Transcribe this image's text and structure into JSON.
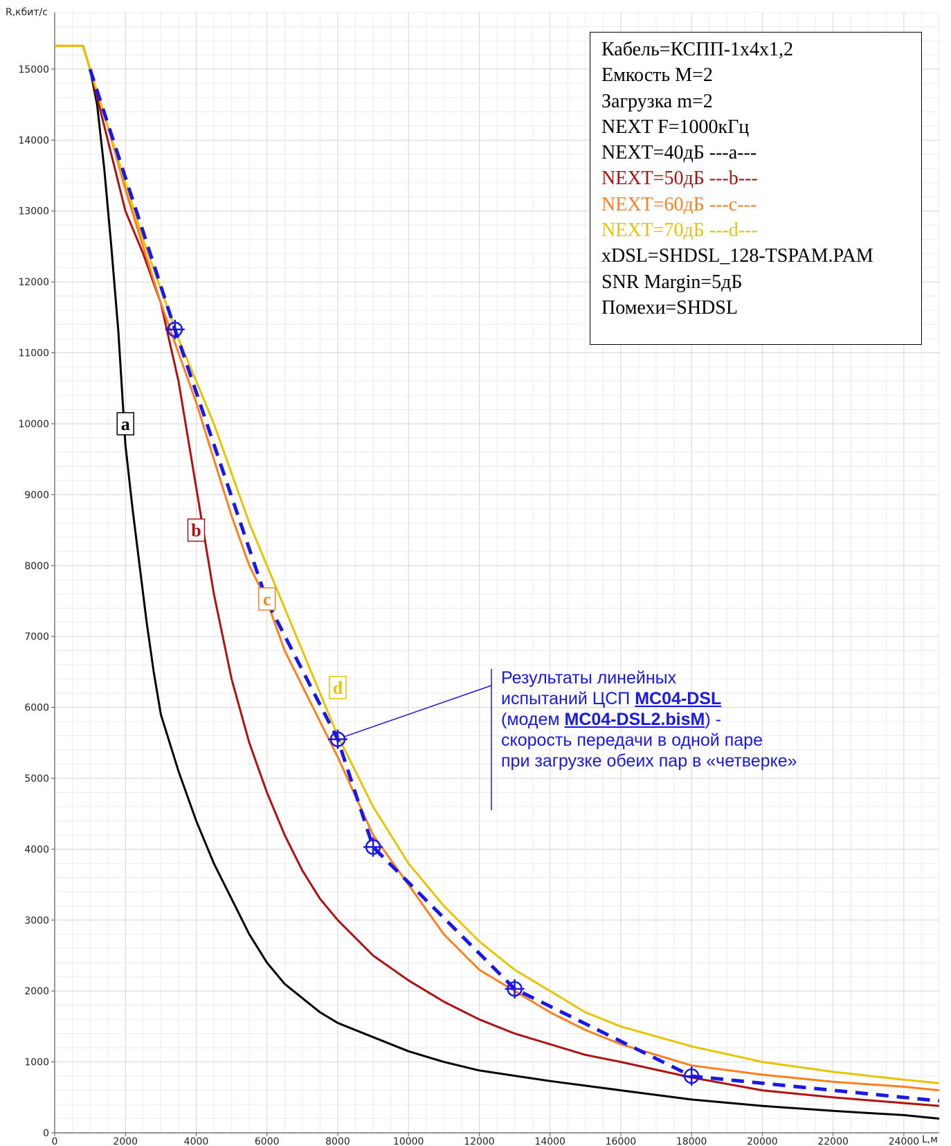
{
  "chart_data": {
    "type": "line",
    "xlabel": "L,м",
    "ylabel": "R,кбит/с",
    "xlim": [
      0,
      25000
    ],
    "ylim": [
      0,
      15800
    ],
    "x_ticks": [
      "0",
      "2000",
      "4000",
      "6000",
      "8000",
      "10000",
      "12000",
      "14000",
      "16000",
      "18000",
      "20000",
      "22000",
      "24000"
    ],
    "y_ticks": [
      "0",
      "1000",
      "2000",
      "3000",
      "4000",
      "5000",
      "6000",
      "7000",
      "8000",
      "9000",
      "10000",
      "11000",
      "12000",
      "13000",
      "14000",
      "15000"
    ],
    "grid": true,
    "series": [
      {
        "label": "a",
        "color": "#000000",
        "x": [
          0,
          800,
          1000,
          1200,
          1400,
          1600,
          1800,
          2000,
          2200,
          2400,
          2600,
          2800,
          3000,
          3500,
          4000,
          4500,
          5000,
          5500,
          6000,
          6500,
          7000,
          7500,
          8000,
          9000,
          10000,
          11000,
          12000,
          14000,
          16000,
          18000,
          20000,
          22000,
          24000,
          25000
        ],
        "y": [
          15330,
          15330,
          15000,
          14500,
          13600,
          12500,
          11300,
          9700,
          8800,
          8000,
          7200,
          6500,
          5900,
          5100,
          4400,
          3800,
          3300,
          2800,
          2400,
          2100,
          1900,
          1700,
          1550,
          1350,
          1150,
          1000,
          880,
          730,
          600,
          470,
          380,
          310,
          250,
          200
        ]
      },
      {
        "label": "b",
        "color": "#b01010",
        "x": [
          0,
          800,
          1000,
          1500,
          2000,
          2500,
          3000,
          3500,
          4000,
          4500,
          5000,
          5500,
          6000,
          6500,
          7000,
          7500,
          8000,
          9000,
          10000,
          11000,
          12000,
          13000,
          14000,
          15000,
          16000,
          18000,
          20000,
          22000,
          24000,
          25000
        ],
        "y": [
          15330,
          15330,
          15000,
          14000,
          13000,
          12400,
          11700,
          10600,
          9100,
          7600,
          6400,
          5500,
          4800,
          4200,
          3700,
          3300,
          3000,
          2500,
          2150,
          1850,
          1600,
          1400,
          1250,
          1100,
          1000,
          780,
          600,
          500,
          420,
          380
        ]
      },
      {
        "label": "c",
        "color": "#ff7f1f",
        "x": [
          0,
          800,
          1000,
          1500,
          2000,
          2500,
          3000,
          3500,
          4000,
          4500,
          5000,
          5500,
          6000,
          6500,
          7000,
          7500,
          8000,
          9000,
          10000,
          11000,
          12000,
          13000,
          14000,
          15000,
          16000,
          18000,
          20000,
          22000,
          24000,
          25000
        ],
        "y": [
          15330,
          15330,
          15000,
          14200,
          13300,
          12500,
          11700,
          11000,
          10300,
          9500,
          8700,
          8000,
          7500,
          6800,
          6300,
          5800,
          5300,
          4200,
          3500,
          2800,
          2300,
          2000,
          1700,
          1450,
          1250,
          950,
          820,
          720,
          650,
          600
        ]
      },
      {
        "label": "d",
        "color": "#e8c400",
        "x": [
          0,
          800,
          1000,
          1500,
          2000,
          2500,
          3000,
          3500,
          4000,
          4500,
          5000,
          5500,
          6000,
          6500,
          7000,
          7500,
          8000,
          9000,
          10000,
          11000,
          12000,
          13000,
          14000,
          15000,
          16000,
          18000,
          20000,
          22000,
          24000,
          25000
        ],
        "y": [
          15330,
          15330,
          15000,
          14200,
          13400,
          12600,
          11900,
          11200,
          10600,
          10000,
          9300,
          8600,
          8000,
          7400,
          6800,
          6200,
          5600,
          4600,
          3800,
          3200,
          2700,
          2300,
          2000,
          1700,
          1500,
          1220,
          1000,
          860,
          750,
          700
        ]
      },
      {
        "label": "Результаты линейных испытаний",
        "color": "#1818e8",
        "dashed": true,
        "x": [
          1000,
          3400,
          6000,
          8000,
          9000,
          13000,
          18000,
          25000
        ],
        "y": [
          15000,
          11330,
          7500,
          5550,
          4030,
          2030,
          800,
          450
        ]
      }
    ],
    "markers": {
      "x": [
        3400,
        8000,
        9000,
        13000,
        18000
      ],
      "y": [
        11330,
        5550,
        4030,
        2030,
        800
      ]
    },
    "curve_labels": [
      {
        "text": "a",
        "x": 2000,
        "y": 10000,
        "color": "#000000"
      },
      {
        "text": "b",
        "x": 4000,
        "y": 8500,
        "color": "#b01010"
      },
      {
        "text": "c",
        "x": 6000,
        "y": 7530,
        "color": "#ff7f1f"
      },
      {
        "text": "d",
        "x": 8000,
        "y": 6280,
        "color": "#e8c400"
      }
    ]
  },
  "legend": {
    "lines": [
      {
        "text": "Кабель=КСПП-1х4х1,2",
        "color": "#000000"
      },
      {
        "text": "Емкость М=2",
        "color": "#000000"
      },
      {
        "text": "Загрузка m=2",
        "color": "#000000"
      },
      {
        "text": "NEXT F=1000кГц",
        "color": "#000000"
      },
      {
        "text": "NEXT=40дБ ---a---",
        "color": "#000000"
      },
      {
        "text": "NEXT=50дБ ---b---",
        "color": "#b01010"
      },
      {
        "text": "NEXT=60дБ ---c---",
        "color": "#ff7f1f"
      },
      {
        "text": "NEXT=70дБ ---d---",
        "color": "#e8c400"
      },
      {
        "text": "xDSL=SHDSL_128-TSPAM.PAM",
        "color": "#000000"
      },
      {
        "text": "SNR Margin=5дБ",
        "color": "#000000"
      },
      {
        "text": "Помехи=SHDSL",
        "color": "#000000"
      }
    ]
  },
  "annotation": {
    "line1": "Результаты линейных",
    "line2_pre": "испытаний ЦСП ",
    "line2_bold": "MC04-DSL",
    "line3_pre": "(модем ",
    "line3_bold": "MC04-DSL2.bisM",
    "line3_post": ") -",
    "line4": "скорость передачи в одной паре",
    "line5": "при загрузке обеих пар в «четверке»"
  }
}
